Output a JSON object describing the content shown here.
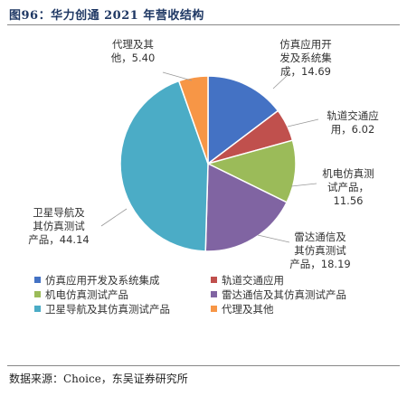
{
  "figure": {
    "title": "图96：华力创通 2021 年营收结构",
    "source": "数据来源：Choice，东吴证券研究所"
  },
  "chart_data": {
    "type": "pie",
    "title": "",
    "categories": [
      "仿真应用开发及系统集成",
      "轨道交通应用",
      "机电仿真测试产品",
      "雷达通信及其仿真测试产品",
      "卫星导航及其仿真测试产品",
      "代理及其他"
    ],
    "values": [
      14.69,
      6.02,
      11.56,
      18.19,
      44.14,
      5.4
    ],
    "slice_labels": [
      [
        "仿真应用开",
        "发及系统集",
        "成，14.69"
      ],
      [
        "轨道交通应",
        "用，6.02"
      ],
      [
        "机电仿真测",
        "试产品，",
        "11.56"
      ],
      [
        "雷达通信及",
        "其仿真测试",
        "产品，18.19"
      ],
      [
        "卫星导航及",
        "其仿真测试",
        "产品，44.14"
      ],
      [
        "代理及其",
        "他，5.40"
      ]
    ],
    "colors": [
      "#4472c4",
      "#c0504d",
      "#9bbb59",
      "#8064a2",
      "#4bacc6",
      "#f79646"
    ],
    "legend_position": "bottom"
  }
}
